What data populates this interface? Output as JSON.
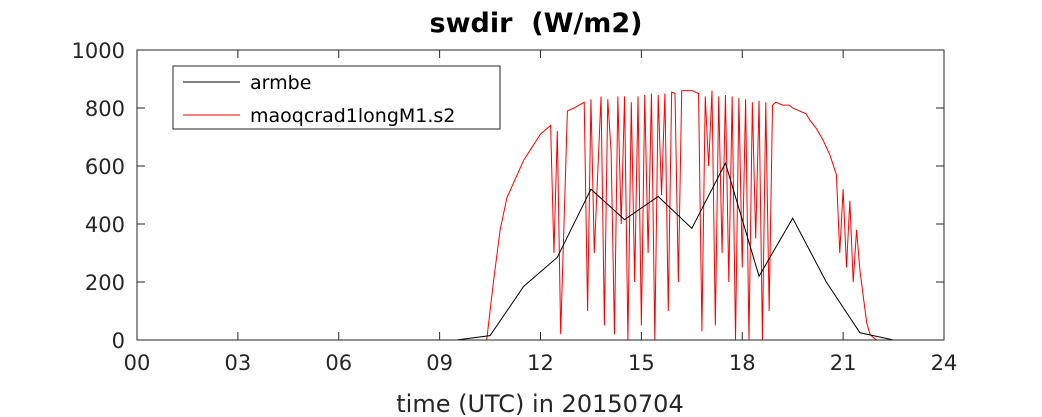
{
  "chart_data": {
    "type": "line",
    "title": "swdir  (W/m2)",
    "xlabel": "time (UTC) in 20150704",
    "ylabel": "",
    "xlim": [
      0,
      24
    ],
    "ylim": [
      0,
      1000
    ],
    "xticks": [
      0,
      3,
      6,
      9,
      12,
      15,
      18,
      21,
      24
    ],
    "xtick_labels": [
      "00",
      "03",
      "06",
      "09",
      "12",
      "15",
      "18",
      "21",
      "24"
    ],
    "yticks": [
      0,
      200,
      400,
      600,
      800,
      1000
    ],
    "ytick_labels": [
      "0",
      "200",
      "400",
      "600",
      "800",
      "1000"
    ],
    "grid": false,
    "legend_position": "top-left",
    "series": [
      {
        "name": "armbe",
        "color": "#000000",
        "x": [
          0,
          9.5,
          10.5,
          11.5,
          12.5,
          13.5,
          14.5,
          15.5,
          16.5,
          17.5,
          18.5,
          19.5,
          20.5,
          21.5,
          22.5,
          24
        ],
        "y": [
          0,
          0,
          15,
          185,
          285,
          520,
          415,
          495,
          385,
          610,
          220,
          420,
          200,
          25,
          0,
          0
        ]
      },
      {
        "name": "maoqcrad1longM1.s2",
        "color": "#ff0000",
        "x": [
          0,
          10.4,
          10.6,
          10.8,
          11.0,
          11.5,
          12.0,
          12.3,
          12.4,
          12.5,
          12.6,
          12.8,
          13.0,
          13.3,
          13.4,
          13.5,
          13.6,
          13.8,
          13.9,
          14.0,
          14.1,
          14.2,
          14.3,
          14.4,
          14.5,
          14.6,
          14.7,
          14.8,
          14.9,
          15.0,
          15.1,
          15.2,
          15.3,
          15.4,
          15.5,
          15.6,
          15.7,
          15.8,
          15.9,
          16.0,
          16.1,
          16.2,
          16.3,
          16.5,
          16.7,
          16.8,
          16.9,
          17.0,
          17.1,
          17.2,
          17.3,
          17.4,
          17.5,
          17.6,
          17.7,
          17.8,
          17.9,
          18.0,
          18.1,
          18.2,
          18.3,
          18.4,
          18.5,
          18.6,
          18.7,
          18.8,
          18.9,
          19.0,
          19.2,
          19.4,
          19.5,
          19.7,
          19.9,
          20.0,
          20.2,
          20.4,
          20.6,
          20.8,
          20.9,
          21.0,
          21.1,
          21.2,
          21.3,
          21.4,
          21.5,
          21.6,
          21.7,
          21.8,
          21.9,
          22.0,
          24
        ],
        "y": [
          0,
          0,
          200,
          380,
          490,
          620,
          710,
          740,
          300,
          720,
          20,
          790,
          800,
          820,
          100,
          830,
          300,
          840,
          50,
          830,
          650,
          20,
          840,
          400,
          840,
          0,
          820,
          200,
          840,
          50,
          845,
          300,
          850,
          0,
          845,
          500,
          850,
          100,
          855,
          850,
          200,
          860,
          860,
          860,
          850,
          30,
          840,
          600,
          860,
          50,
          840,
          300,
          845,
          200,
          840,
          0,
          835,
          250,
          830,
          0,
          820,
          350,
          825,
          0,
          820,
          100,
          810,
          820,
          810,
          810,
          800,
          790,
          780,
          760,
          730,
          690,
          640,
          570,
          300,
          520,
          250,
          480,
          200,
          380,
          240,
          150,
          60,
          20,
          8,
          0,
          0
        ]
      }
    ]
  }
}
